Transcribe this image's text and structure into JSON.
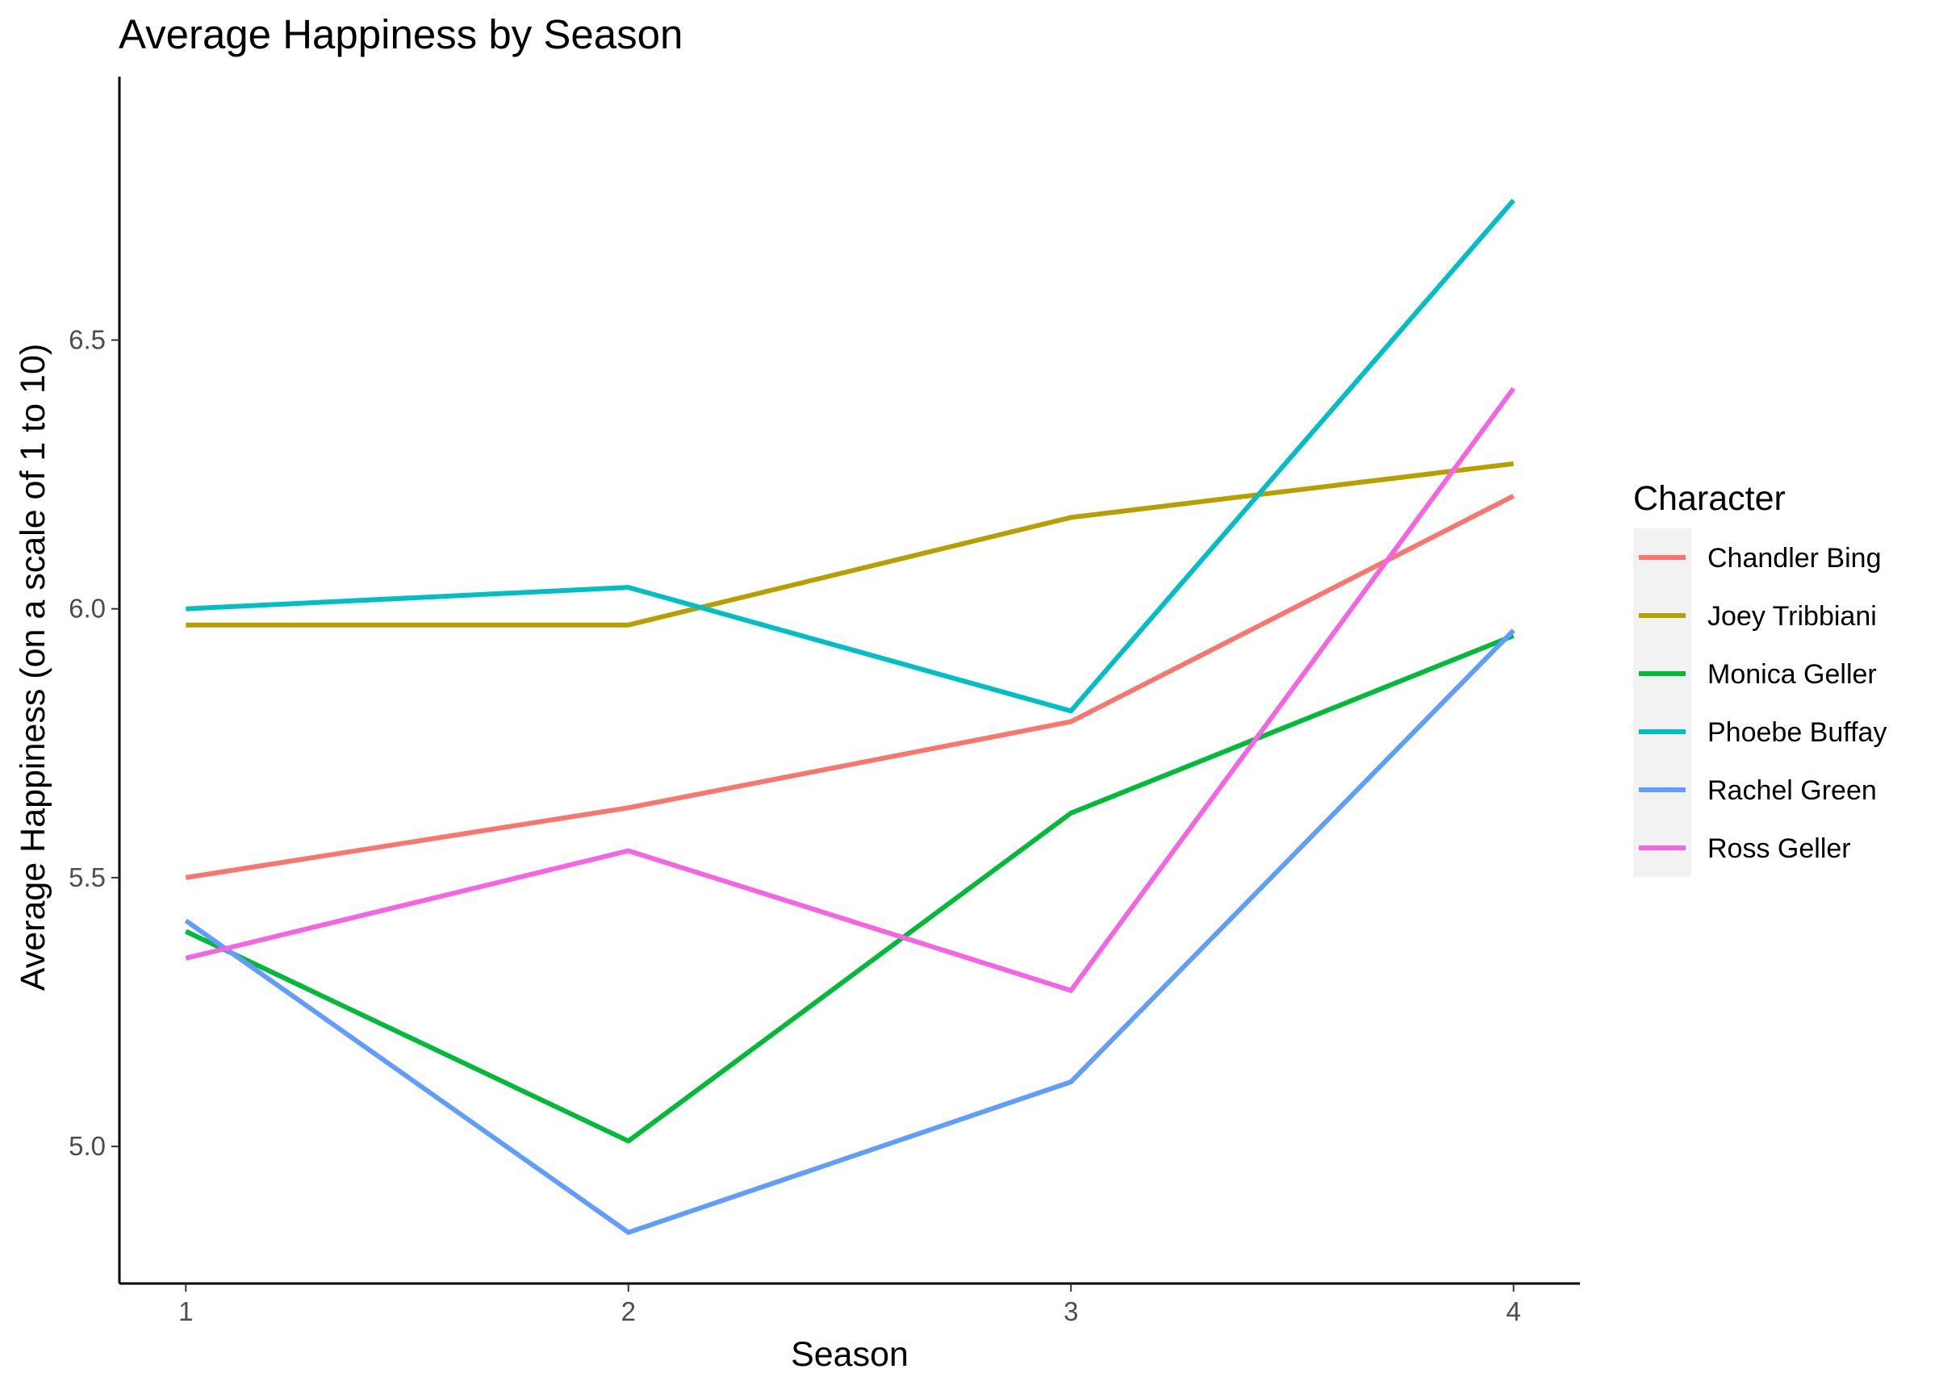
{
  "chart_data": {
    "type": "line",
    "title": "Average Happiness by Season",
    "xlabel": "Season",
    "ylabel": "Average Happiness (on a scale of 1 to 10)",
    "x": [
      1,
      2,
      3,
      4
    ],
    "x_tick_labels": [
      "1",
      "2",
      "3",
      "4"
    ],
    "y_ticks": [
      5.0,
      5.5,
      6.0,
      6.5
    ],
    "y_tick_labels": [
      "5.0",
      "5.5",
      "6.0",
      "6.5"
    ],
    "xlim": [
      0.85,
      4.15
    ],
    "ylim": [
      4.745,
      6.99
    ],
    "grid": false,
    "legend_title": "Character",
    "legend_position": "right",
    "series": [
      {
        "name": "Chandler Bing",
        "color": "#F8766D",
        "values": [
          5.5,
          5.63,
          5.79,
          6.21
        ]
      },
      {
        "name": "Joey Tribbiani",
        "color": "#B79F00",
        "values": [
          5.97,
          5.97,
          6.17,
          6.27
        ]
      },
      {
        "name": "Monica Geller",
        "color": "#00BA38",
        "values": [
          5.4,
          5.01,
          5.62,
          5.95
        ]
      },
      {
        "name": "Phoebe Buffay",
        "color": "#00BFC4",
        "values": [
          6.0,
          6.04,
          5.81,
          6.76
        ]
      },
      {
        "name": "Rachel Green",
        "color": "#619CFF",
        "values": [
          5.42,
          4.84,
          5.12,
          5.96
        ]
      },
      {
        "name": "Ross Geller",
        "color": "#F564E3",
        "values": [
          5.35,
          5.55,
          5.29,
          6.41
        ]
      }
    ]
  }
}
